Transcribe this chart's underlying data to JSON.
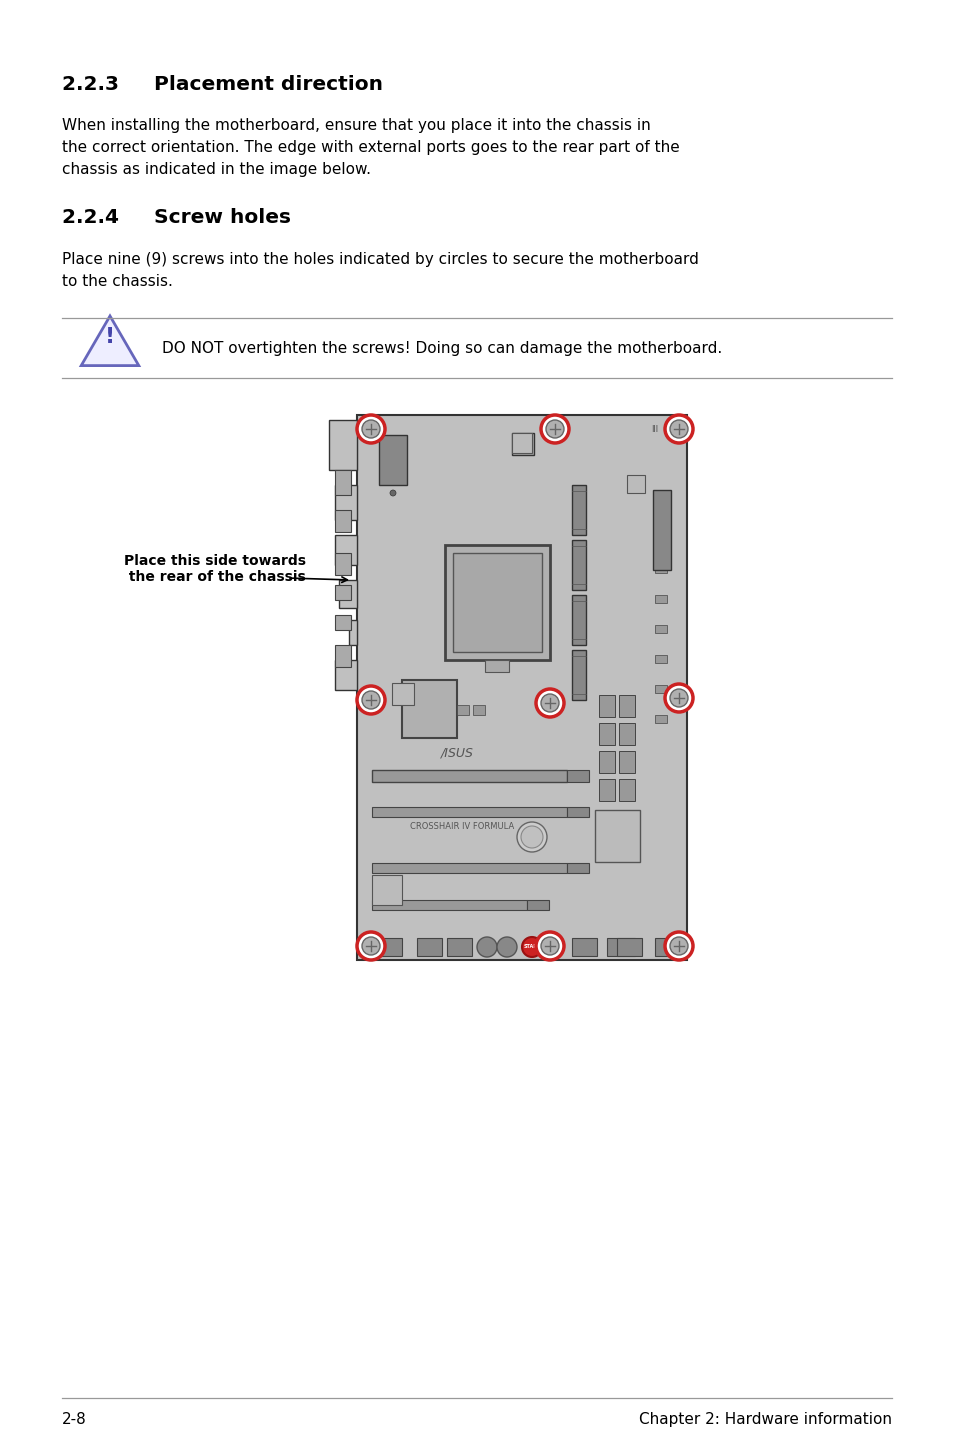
{
  "title_223": "2.2.3     Placement direction",
  "body_223_1": "When installing the motherboard, ensure that you place it into the chassis in",
  "body_223_2": "the correct orientation. The edge with external ports goes to the rear part of the",
  "body_223_3": "chassis as indicated in the image below.",
  "title_224": "2.2.4     Screw holes",
  "body_224_1": "Place nine (9) screws into the holes indicated by circles to secure the motherboard",
  "body_224_2": "to the chassis.",
  "warning_text": "DO NOT overtighten the screws! Doing so can damage the motherboard.",
  "label_line1": "Place this side towards",
  "label_line2": " the rear of the chassis",
  "footer_left": "2-8",
  "footer_right": "Chapter 2: Hardware information",
  "bg_color": "#ffffff",
  "board_color": "#c0c0c0",
  "board_edge": "#333333",
  "screw_ring_color": "#cc2222",
  "screw_inner_color": "#a0a0a0",
  "dark_comp": "#888888",
  "mid_comp": "#aaaaaa"
}
